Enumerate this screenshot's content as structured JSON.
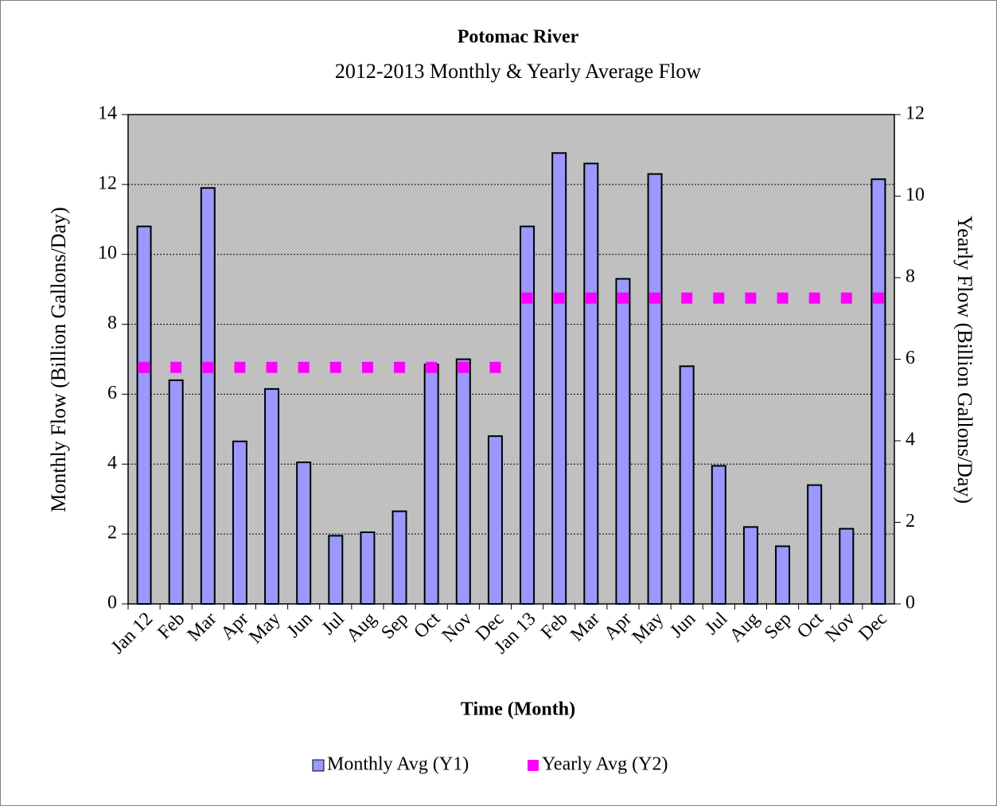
{
  "chart_data": {
    "type": "bar",
    "title": "Potomac River",
    "subtitle": "2012-2013 Monthly & Yearly Average Flow",
    "x_label": "Time (Month)",
    "y_label": "Monthly Flow (Billion Gallons/Day)",
    "y2_label": "Yearly Flow (Billion Gallons/Day)",
    "categories": [
      "Jan 12",
      "Feb",
      "Mar",
      "Apr",
      "May",
      "Jun",
      "Jul",
      "Aug",
      "Sep",
      "Oct",
      "Nov",
      "Dec",
      "Jan 13",
      "Feb",
      "Mar",
      "Apr",
      "May",
      "Jun",
      "Jul",
      "Aug",
      "Sep",
      "Oct",
      "Nov",
      "Dec"
    ],
    "series": [
      {
        "name": "Monthly Avg (Y1)",
        "type": "bar",
        "color": "#9999ff",
        "values": [
          10.8,
          6.4,
          11.9,
          4.65,
          6.15,
          4.05,
          1.95,
          2.05,
          2.65,
          6.85,
          7.0,
          4.8,
          10.8,
          12.9,
          12.6,
          9.3,
          12.3,
          6.8,
          3.95,
          2.2,
          1.65,
          3.4,
          2.15,
          12.15
        ]
      },
      {
        "name": "Yearly Avg (Y2)",
        "type": "square",
        "color": "#ff00ff",
        "axis": "y2",
        "values": [
          5.8,
          5.8,
          5.8,
          5.8,
          5.8,
          5.8,
          5.8,
          5.8,
          5.8,
          5.8,
          5.8,
          5.8,
          7.5,
          7.5,
          7.5,
          7.5,
          7.5,
          7.5,
          7.5,
          7.5,
          7.5,
          7.5,
          7.5,
          7.5
        ]
      }
    ],
    "ylim": [
      0,
      14
    ],
    "yticks": [
      0,
      2,
      4,
      6,
      8,
      10,
      12,
      14
    ],
    "y2lim": [
      0,
      12
    ],
    "y2ticks": [
      0,
      2,
      4,
      6,
      8,
      10,
      12
    ],
    "grid": true,
    "plot_background": "#c0c0c0",
    "legend": "bottom"
  }
}
